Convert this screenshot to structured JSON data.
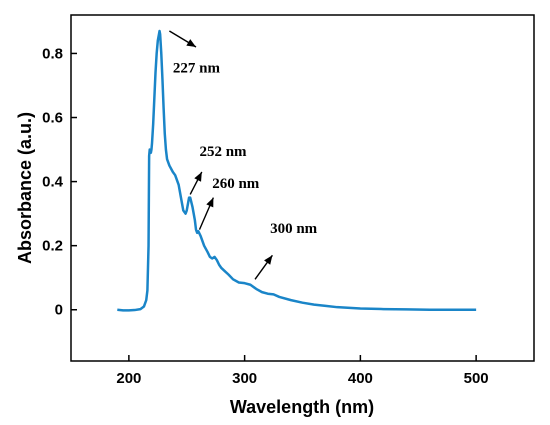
{
  "chart_data": {
    "type": "line",
    "title": "",
    "xlabel": "Wavelength (nm)",
    "ylabel": "Absorbance (a.u.)",
    "xlim": [
      150,
      550
    ],
    "ylim": [
      -0.16,
      0.92
    ],
    "x_ticks": [
      200,
      300,
      400,
      500
    ],
    "x_tick_labels": [
      "200",
      "300",
      "400",
      "500"
    ],
    "y_ticks": [
      0,
      0.2,
      0.4,
      0.6,
      0.8
    ],
    "y_tick_labels": [
      "0",
      "0.2",
      "0.4",
      "0.6",
      "0.8"
    ],
    "grid": false,
    "line_color": "#1a85c8",
    "series": [
      {
        "x": [
          190,
          195,
          200,
          205,
          210,
          213,
          215,
          216,
          217,
          217.5,
          218,
          218.5,
          219,
          219.5,
          220,
          221,
          222,
          223,
          224,
          225,
          226,
          226.5,
          227,
          228,
          229,
          230,
          231,
          232,
          233,
          235,
          238,
          240,
          243,
          245,
          247,
          249,
          250,
          251,
          252,
          253,
          255,
          257,
          258,
          259,
          260,
          262,
          265,
          268,
          270,
          272,
          274,
          276,
          278,
          280,
          283,
          286,
          290,
          295,
          300,
          305,
          310,
          315,
          320,
          325,
          330,
          340,
          350,
          360,
          370,
          380,
          400,
          420,
          440,
          460,
          480,
          500
        ],
        "y": [
          0.0,
          -0.002,
          -0.002,
          -0.001,
          0.002,
          0.01,
          0.03,
          0.06,
          0.2,
          0.48,
          0.5,
          0.49,
          0.49,
          0.5,
          0.52,
          0.58,
          0.66,
          0.74,
          0.8,
          0.84,
          0.86,
          0.87,
          0.86,
          0.8,
          0.72,
          0.63,
          0.55,
          0.5,
          0.47,
          0.45,
          0.43,
          0.42,
          0.39,
          0.35,
          0.31,
          0.3,
          0.31,
          0.33,
          0.35,
          0.35,
          0.32,
          0.28,
          0.25,
          0.24,
          0.245,
          0.23,
          0.2,
          0.18,
          0.165,
          0.16,
          0.165,
          0.155,
          0.14,
          0.13,
          0.12,
          0.11,
          0.095,
          0.085,
          0.083,
          0.078,
          0.065,
          0.055,
          0.05,
          0.048,
          0.04,
          0.03,
          0.022,
          0.016,
          0.012,
          0.008,
          0.004,
          0.002,
          0.001,
          0.0,
          0.0,
          0.0
        ]
      }
    ],
    "annotations": [
      {
        "text": "227 nm",
        "arrow_from": [
          235,
          0.87
        ],
        "arrow_to": [
          258,
          0.82
        ],
        "text_at": [
          238,
          0.74
        ]
      },
      {
        "text": "252 nm",
        "arrow_from": [
          253,
          0.36
        ],
        "arrow_to": [
          263,
          0.43
        ],
        "text_at": [
          261,
          0.48
        ]
      },
      {
        "text": "260 nm",
        "arrow_from": [
          261,
          0.25
        ],
        "arrow_to": [
          273,
          0.35
        ],
        "text_at": [
          272,
          0.38
        ]
      },
      {
        "text": "300 nm",
        "arrow_from": [
          309,
          0.095
        ],
        "arrow_to": [
          324,
          0.17
        ],
        "text_at": [
          322,
          0.24
        ]
      }
    ]
  }
}
